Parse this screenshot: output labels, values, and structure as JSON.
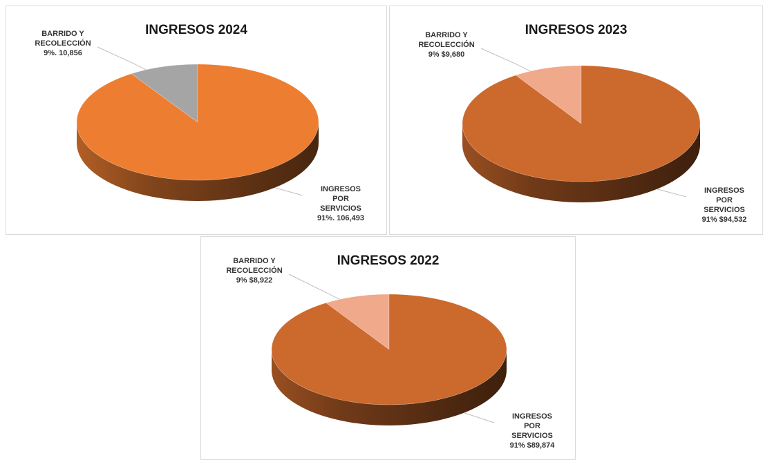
{
  "chart_data": [
    {
      "type": "pie",
      "title": "INGRESOS 2024",
      "categories": [
        "BARRIDO Y RECOLECCIÓN",
        "INGRESOS POR SERVICIOS"
      ],
      "values": [
        10856,
        106493
      ],
      "value_labels": [
        "9%. 10,856",
        "91%. 106,493"
      ],
      "colors": [
        "#a5a5a5",
        "#ed7d31"
      ]
    },
    {
      "type": "pie",
      "title": "INGRESOS 2023",
      "categories": [
        "BARRIDO Y RECOLECCIÓN",
        "INGRESOS POR SERVICIOS"
      ],
      "values": [
        9680,
        94532
      ],
      "value_labels": [
        "9% $9,680",
        "91% $94,532"
      ],
      "colors": [
        "#f0a98a",
        "#cc692c"
      ]
    },
    {
      "type": "pie",
      "title": "INGRESOS 2022",
      "categories": [
        "BARRIDO Y RECOLECCIÓN",
        "INGRESOS POR SERVICIOS"
      ],
      "values": [
        8922,
        89874
      ],
      "value_labels": [
        "9% $8,922",
        "91% $89,874"
      ],
      "colors": [
        "#f0a98a",
        "#cc692c"
      ]
    }
  ]
}
